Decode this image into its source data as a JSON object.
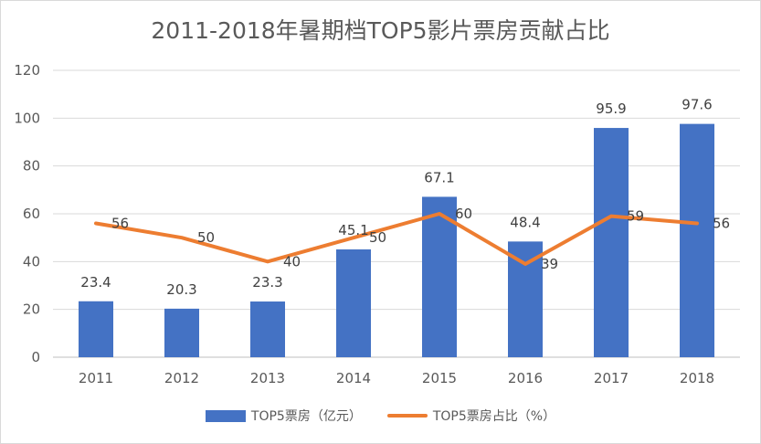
{
  "chart_data": {
    "type": "bar",
    "title": "2011-2018年暑期档TOP5影片票房贡献占比",
    "categories": [
      "2011",
      "2012",
      "2013",
      "2014",
      "2015",
      "2016",
      "2017",
      "2018"
    ],
    "ylim": [
      0,
      120
    ],
    "yticks": [
      0,
      20,
      40,
      60,
      80,
      100,
      120
    ],
    "grid": true,
    "legend_position": "bottom",
    "series": [
      {
        "name": "TOP5票房（亿元）",
        "kind": "bar",
        "color": "#4472c4",
        "values": [
          23.4,
          20.3,
          23.3,
          45.1,
          67.1,
          48.4,
          95.9,
          97.6
        ]
      },
      {
        "name": "TOP5票房占比（%）",
        "kind": "line",
        "color": "#ed7d31",
        "values": [
          56,
          50,
          40,
          50,
          60,
          39,
          59,
          56
        ]
      }
    ]
  }
}
